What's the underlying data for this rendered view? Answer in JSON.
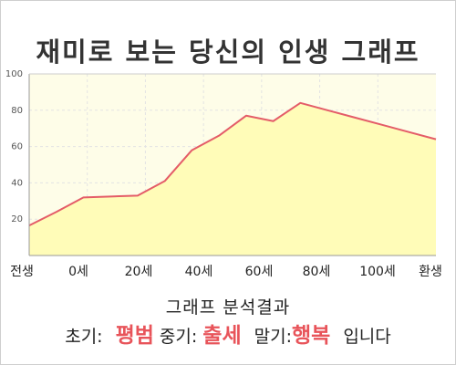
{
  "title": "재미로 보는 당신의 인생 그래프",
  "colors": {
    "plot_background": "#fefde8",
    "area_fill": "#fffcb8",
    "line": "#e45c68",
    "grid": "#e3e3e3",
    "highlight": "#e8545a"
  },
  "chart_data": {
    "type": "area",
    "title": "",
    "xlabel": "",
    "ylabel": "",
    "x_ticks": [
      "전생",
      "0세",
      "20세",
      "40세",
      "60세",
      "80세",
      "100세",
      "환생"
    ],
    "y_ticks": [
      20,
      40,
      60,
      80,
      100
    ],
    "ylim": [
      0,
      100
    ],
    "grid": true,
    "series": [
      {
        "x": [
          -0.5,
          0,
          0.5,
          1,
          1.5,
          2,
          2.5,
          3,
          3.5,
          4,
          4.5,
          5,
          5.5,
          6,
          6.5,
          7
        ],
        "y": [
          16.5,
          24,
          32,
          32.5,
          33,
          41,
          58,
          66,
          77,
          74,
          84,
          80,
          76,
          72,
          68,
          64
        ]
      }
    ]
  },
  "summary": {
    "heading": "그래프 분석결과",
    "early_label": "초기:",
    "early_value": "평범",
    "middle_label": "중기:",
    "middle_value": "출세",
    "late_label": "말기:",
    "late_value": "행복",
    "ending": "입니다"
  }
}
